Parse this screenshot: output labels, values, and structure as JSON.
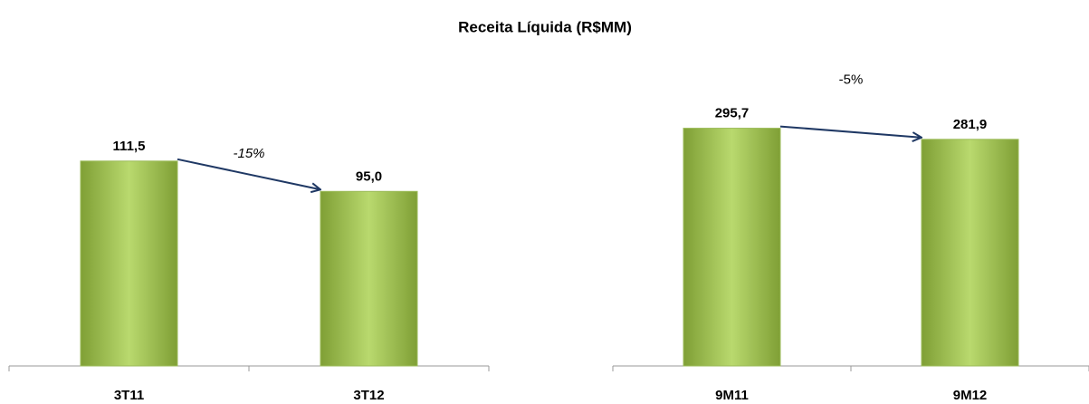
{
  "title": "Receita Líquida (R$MM)",
  "chart_data": [
    {
      "type": "bar",
      "categories": [
        "3T11",
        "3T12"
      ],
      "values": [
        111.5,
        95.0
      ],
      "value_labels": [
        "111,5",
        "95,0"
      ],
      "color": "#9bbb59",
      "ylim": [
        0,
        140
      ],
      "annotation": "-15%"
    },
    {
      "type": "bar",
      "categories": [
        "9M11",
        "9M12"
      ],
      "values": [
        295.7,
        281.9
      ],
      "value_labels": [
        "295,7",
        "281,9"
      ],
      "color": "#9bbb59",
      "ylim": [
        0,
        320
      ],
      "annotation": "-5%"
    }
  ]
}
